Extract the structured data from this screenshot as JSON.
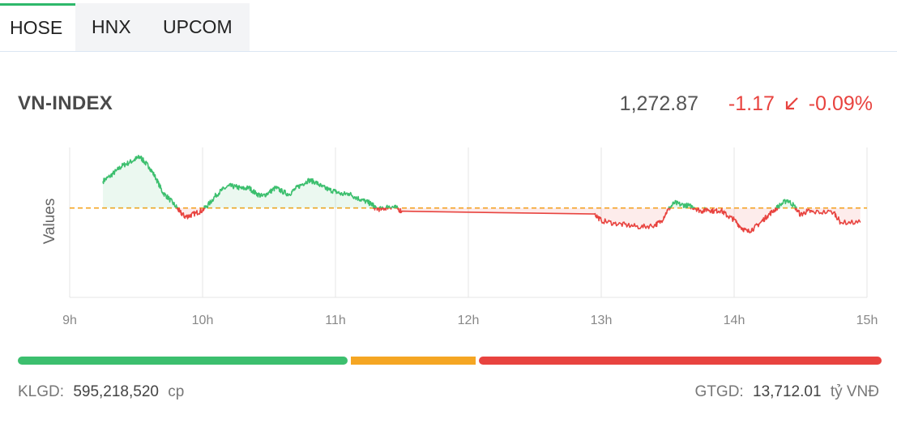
{
  "tabs": [
    {
      "label": "HOSE",
      "active": true
    },
    {
      "label": "HNX",
      "active": false
    },
    {
      "label": "UPCOM",
      "active": false
    }
  ],
  "index": {
    "name": "VN-INDEX",
    "value": "1,272.87",
    "change": "-1.17",
    "change_pct": "-0.09%",
    "arrow_icon": "arrow-down-left-icon"
  },
  "colors": {
    "up": "#3cbf6e",
    "down": "#e8433f",
    "reference": "#f5a623",
    "unchanged": "#f5a623"
  },
  "breadth": {
    "up_fraction": 0.385,
    "unchanged_fraction": 0.145,
    "down_fraction": 0.47
  },
  "stats": {
    "volume_label": "KLGD:",
    "volume_value": "595,218,520",
    "volume_unit": "cp",
    "value_label": "GTGD:",
    "value_value": "13,712.01",
    "value_unit": "tỷ VNĐ"
  },
  "chart_data": {
    "type": "line",
    "title": "",
    "xlabel": "",
    "ylabel": "Values",
    "x_ticks": [
      "9h",
      "10h",
      "11h",
      "12h",
      "13h",
      "14h",
      "15h"
    ],
    "xlim": [
      9,
      15
    ],
    "ylim": [
      1264.5,
      1280.5
    ],
    "reference": 1274.04,
    "grid": "vertical",
    "series": [
      {
        "points": [
          [
            9.25,
            1276.9
          ],
          [
            9.3,
            1277.4
          ],
          [
            9.35,
            1278.0
          ],
          [
            9.4,
            1278.6
          ],
          [
            9.45,
            1278.9
          ],
          [
            9.5,
            1279.3
          ],
          [
            9.53,
            1279.5
          ],
          [
            9.56,
            1279.0
          ],
          [
            9.6,
            1278.4
          ],
          [
            9.65,
            1277.2
          ],
          [
            9.7,
            1275.7
          ],
          [
            9.75,
            1275.0
          ],
          [
            9.8,
            1274.2
          ],
          [
            9.83,
            1273.6
          ],
          [
            9.87,
            1273.1
          ],
          [
            9.9,
            1273.2
          ],
          [
            9.95,
            1273.5
          ],
          [
            10.0,
            1273.8
          ],
          [
            10.05,
            1274.5
          ],
          [
            10.1,
            1275.4
          ],
          [
            10.15,
            1276.0
          ],
          [
            10.2,
            1276.4
          ],
          [
            10.25,
            1276.3
          ],
          [
            10.3,
            1276.1
          ],
          [
            10.35,
            1276.2
          ],
          [
            10.4,
            1275.6
          ],
          [
            10.45,
            1275.3
          ],
          [
            10.5,
            1275.7
          ],
          [
            10.55,
            1276.2
          ],
          [
            10.6,
            1275.8
          ],
          [
            10.65,
            1275.5
          ],
          [
            10.7,
            1276.1
          ],
          [
            10.75,
            1276.6
          ],
          [
            10.8,
            1277.0
          ],
          [
            10.85,
            1276.8
          ],
          [
            10.9,
            1276.3
          ],
          [
            10.95,
            1276.0
          ],
          [
            11.0,
            1275.8
          ],
          [
            11.05,
            1275.5
          ],
          [
            11.1,
            1275.6
          ],
          [
            11.15,
            1275.2
          ],
          [
            11.2,
            1274.9
          ],
          [
            11.25,
            1274.6
          ],
          [
            11.28,
            1274.4
          ],
          [
            11.3,
            1274.0
          ],
          [
            11.35,
            1273.9
          ],
          [
            11.4,
            1274.2
          ],
          [
            11.45,
            1274.1
          ],
          [
            11.5,
            1273.7
          ],
          [
            12.95,
            1273.4
          ],
          [
            13.0,
            1272.7
          ],
          [
            13.1,
            1272.4
          ],
          [
            13.2,
            1272.2
          ],
          [
            13.3,
            1272.0
          ],
          [
            13.4,
            1272.2
          ],
          [
            13.45,
            1272.6
          ],
          [
            13.5,
            1273.8
          ],
          [
            13.55,
            1274.6
          ],
          [
            13.6,
            1274.4
          ],
          [
            13.65,
            1274.3
          ],
          [
            13.7,
            1274.1
          ],
          [
            13.75,
            1273.7
          ],
          [
            13.8,
            1273.9
          ],
          [
            13.85,
            1273.7
          ],
          [
            13.9,
            1273.8
          ],
          [
            13.95,
            1273.2
          ],
          [
            14.0,
            1272.8
          ],
          [
            14.05,
            1272.0
          ],
          [
            14.1,
            1271.5
          ],
          [
            14.15,
            1271.9
          ],
          [
            14.2,
            1272.5
          ],
          [
            14.25,
            1273.2
          ],
          [
            14.3,
            1273.8
          ],
          [
            14.35,
            1274.4
          ],
          [
            14.4,
            1274.9
          ],
          [
            14.45,
            1274.3
          ],
          [
            14.5,
            1273.3
          ],
          [
            14.55,
            1273.7
          ],
          [
            14.6,
            1273.6
          ],
          [
            14.75,
            1273.6
          ],
          [
            14.8,
            1272.5
          ],
          [
            14.95,
            1272.5
          ]
        ]
      }
    ]
  }
}
